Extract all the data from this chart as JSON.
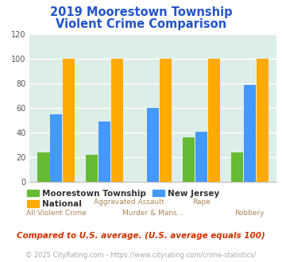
{
  "title_line1": "2019 Moorestown Township",
  "title_line2": "Violent Crime Comparison",
  "moorestown": [
    24,
    22,
    0,
    36,
    24
  ],
  "national": [
    100,
    100,
    100,
    100,
    100
  ],
  "new_jersey": [
    55,
    49,
    60,
    41,
    79
  ],
  "color_moorestown": "#66bb33",
  "color_national": "#ffaa00",
  "color_nj": "#4499ff",
  "ylim": [
    0,
    120
  ],
  "yticks": [
    0,
    20,
    40,
    60,
    80,
    100,
    120
  ],
  "plot_bg": "#ddeee8",
  "title_color": "#2255cc",
  "xlabel_top_labels": [
    "Aggravated Assault",
    "Rape"
  ],
  "xlabel_top_positions": [
    1.5,
    3
  ],
  "xlabel_bot_labels": [
    "All Violent Crime",
    "Murder & Mans...",
    "Robbery"
  ],
  "xlabel_bot_positions": [
    0,
    2,
    4
  ],
  "xlabel_color": "#aa8855",
  "legend_label_moorestown": "Moorestown Township",
  "legend_label_national": "National",
  "legend_label_nj": "New Jersey",
  "footnote1": "Compared to U.S. average. (U.S. average equals 100)",
  "footnote2": "© 2025 CityRating.com - https://www.cityrating.com/crime-statistics/",
  "footnote1_color": "#cc3300",
  "footnote2_color": "#aaaaaa"
}
